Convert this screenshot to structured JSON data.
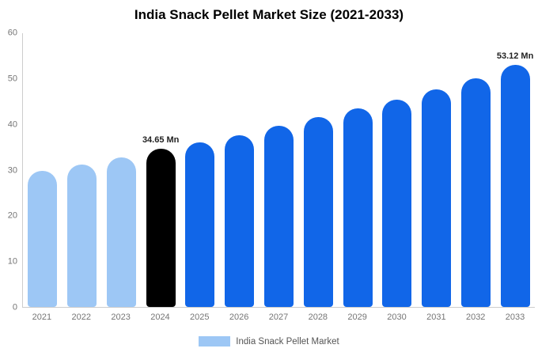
{
  "chart_data": {
    "type": "bar",
    "title": "India Snack Pellet Market Size (2021-2033)",
    "categories": [
      "2021",
      "2022",
      "2023",
      "2024",
      "2025",
      "2026",
      "2027",
      "2028",
      "2029",
      "2030",
      "2031",
      "2032",
      "2033"
    ],
    "values": [
      29.8,
      31.2,
      32.8,
      34.65,
      36.1,
      37.7,
      39.8,
      41.7,
      43.6,
      45.5,
      47.7,
      50.2,
      53.12
    ],
    "bar_colors": [
      "#9dc7f5",
      "#9dc7f5",
      "#9dc7f5",
      "#000000",
      "#1166e8",
      "#1166e8",
      "#1166e8",
      "#1166e8",
      "#1166e8",
      "#1166e8",
      "#1166e8",
      "#1166e8",
      "#1166e8"
    ],
    "annotations": [
      {
        "index": 3,
        "text": "34.65 Mn"
      },
      {
        "index": 12,
        "text": "53.12 Mn"
      }
    ],
    "ylim": [
      0,
      60
    ],
    "yticks": [
      0,
      10,
      20,
      30,
      40,
      50,
      60
    ],
    "grid": false,
    "legend": {
      "label": "India Snack Pellet Market",
      "color": "#9dc7f5",
      "position": "bottom"
    },
    "colors": {
      "axis_line": "#cccccc",
      "tick_text": "#757575",
      "title_text": "#000000"
    }
  }
}
